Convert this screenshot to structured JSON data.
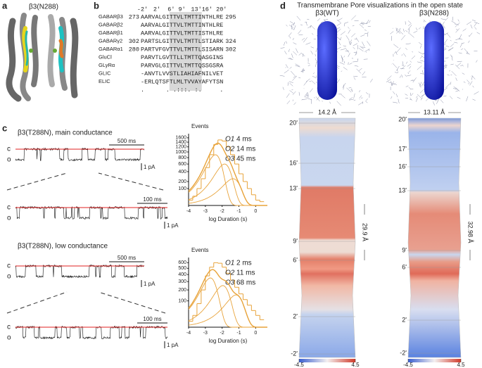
{
  "panel_a": {
    "label": "a",
    "title": "β3(N288)"
  },
  "panel_b": {
    "label": "b",
    "positions": [
      "-2'",
      "2'",
      "6'",
      "9'",
      "13'",
      "16'",
      "20'"
    ],
    "rows": [
      {
        "name": "GABARβ3",
        "start": "273",
        "sequence": "AARVALGITTVLTMTTINTHLRE",
        "end": "295"
      },
      {
        "name": "GABARβ2",
        "sequence": "AARVALGITTVLTMTTINTHLRE"
      },
      {
        "name": "GABARβ1",
        "sequence": "AARVALGITTVLTMTTISTHLRE"
      },
      {
        "name": "GABARγ2",
        "start": "302",
        "sequence": "PARTSLGITTVLTMTTLSTIARK",
        "end": "324"
      },
      {
        "name": "GABARα1",
        "start": "280",
        "sequence": "PARTVFGVTTVLTMTTLSISARN",
        "end": "302"
      },
      {
        "name": "GluCl",
        "sequence": "PARVTLGVTTLLTMTTQASGINS"
      },
      {
        "name": "GLyRα",
        "sequence": "PARVGLGITTVLTMTTQSSGSRA"
      },
      {
        "name": "GLIC",
        "sequence": "-ANVTLVVSTLIAHIAFNILVET"
      },
      {
        "name": "ELIC",
        "sequence": "-ERLQTSFTLMLTVVAYAFYTSN"
      }
    ],
    "conservation": ".      . .:::. :.     ."
  },
  "panel_c": {
    "label": "c",
    "recordings": [
      {
        "title": "β3(T288N), main conductance",
        "scale_long": "500 ms",
        "scale_short": "100 ms",
        "current_scale": "1 pA",
        "closed": "c",
        "open": "o"
      },
      {
        "title": "β3(T288N), low conductance",
        "scale_long": "500 ms",
        "scale_short": "100 ms",
        "current_scale": "1 pA",
        "closed": "c",
        "open": "o"
      }
    ],
    "histograms": [
      {
        "type": "histogram",
        "y_label": "Events",
        "x_label": "log Duration (s)",
        "color": "#e8a33a",
        "yscale": "sqrt",
        "bins": [
          -4,
          -3.75,
          -3.5,
          -3.25,
          -3,
          -2.75,
          -2.5,
          -2.25,
          -2,
          -1.75,
          -1.5,
          -1.25,
          -1,
          -0.75,
          -0.5,
          -0.25,
          0,
          0.25,
          0.5
        ],
        "counts": [
          10,
          30,
          100,
          250,
          500,
          900,
          1300,
          1500,
          1450,
          1200,
          900,
          600,
          350,
          200,
          100,
          40,
          10,
          5
        ],
        "xlim": [
          -4,
          0.7
        ],
        "ylim": [
          0,
          1800
        ],
        "xticks": [
          -4,
          -3,
          -2,
          -1,
          0
        ],
        "yticks": [
          100,
          200,
          400,
          600,
          800,
          1000,
          1200,
          1400,
          1600
        ],
        "components": [
          {
            "name": "O1",
            "value": 4,
            "value_label": "4 ms",
            "amplitude": 900
          },
          {
            "name": "O2",
            "value": 14,
            "value_label": "14 ms",
            "amplitude": 600
          },
          {
            "name": "O3",
            "value": 45,
            "value_label": "45 ms",
            "amplitude": 250
          }
        ]
      },
      {
        "type": "histogram",
        "y_label": "Events",
        "x_label": "log Duration (s)",
        "color": "#e8a33a",
        "yscale": "sqrt",
        "bins": [
          -4,
          -3.75,
          -3.5,
          -3.25,
          -3,
          -2.75,
          -2.5,
          -2.25,
          -2,
          -1.75,
          -1.5,
          -1.25,
          -1,
          -0.75,
          -0.5,
          -0.25,
          0,
          0.25,
          0.5
        ],
        "counts": [
          5,
          20,
          80,
          200,
          380,
          520,
          600,
          590,
          520,
          420,
          320,
          230,
          160,
          110,
          70,
          40,
          20,
          8
        ],
        "xlim": [
          -4,
          0.7
        ],
        "ylim": [
          0,
          700
        ],
        "xticks": [
          -4,
          -3,
          -2,
          -1,
          0
        ],
        "yticks": [
          100,
          200,
          300,
          400,
          500,
          600
        ],
        "components": [
          {
            "name": "O1",
            "value": 2,
            "value_label": "2 ms",
            "amplitude": 350
          },
          {
            "name": "O2",
            "value": 11,
            "value_label": "11 ms",
            "amplitude": 250
          },
          {
            "name": "O3",
            "value": 68,
            "value_label": "68 ms",
            "amplitude": 150
          }
        ]
      }
    ]
  },
  "panel_d": {
    "label": "d",
    "title": "Transmembrane Pore visualizations in the open state",
    "structures": [
      {
        "name": "β3(WT)",
        "width": "14.2 Å",
        "length": "29.9 Å",
        "levels": [
          "20'",
          "16'",
          "13'",
          "9'",
          "6'",
          "2'",
          "-2'"
        ],
        "colorbar": {
          "lim": [
            -4.5,
            4.5
          ],
          "ticks": [
            -4.5,
            4.5
          ]
        }
      },
      {
        "name": "β3(N288)",
        "width": "13.11 Å",
        "length": "32.98 Å",
        "levels": [
          "20'",
          "17'",
          "16'",
          "13'",
          "9'",
          "6'",
          "2'",
          "-2'"
        ],
        "colorbar": {
          "lim": [
            -4.5,
            4.5
          ],
          "ticks": [
            -4.5,
            4.5
          ]
        }
      }
    ]
  }
}
